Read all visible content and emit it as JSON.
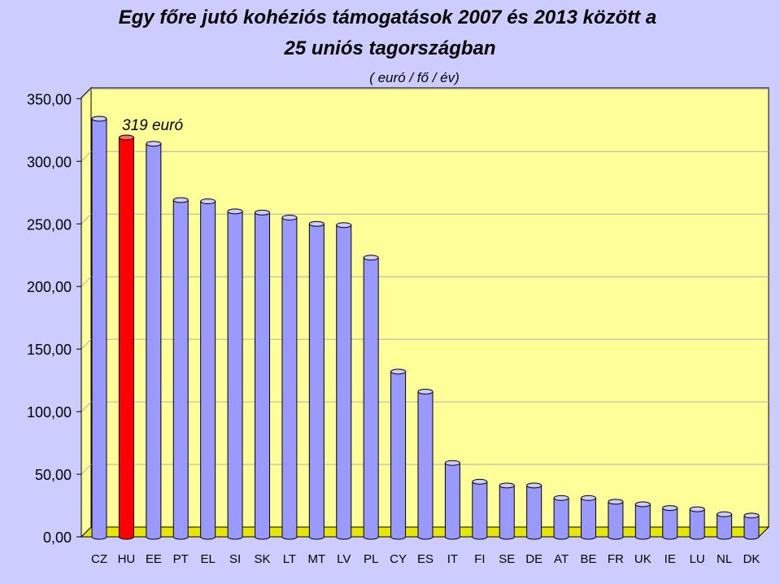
{
  "chart_data": {
    "type": "bar",
    "title": [
      "Egy főre jutó kohéziós támogatások 2007 és 2013 között a",
      "25 uniós tagországban"
    ],
    "subtitle": "( euró / fő / év)",
    "annotation": "319 euró",
    "categories": [
      "CZ",
      "HU",
      "EE",
      "PT",
      "EL",
      "SI",
      "SK",
      "LT",
      "MT",
      "LV",
      "PL",
      "CY",
      "ES",
      "IT",
      "FI",
      "SE",
      "DE",
      "AT",
      "BE",
      "FR",
      "UK",
      "IE",
      "LU",
      "NL",
      "DK"
    ],
    "values": [
      334,
      319,
      314,
      269,
      268,
      260,
      259,
      255,
      250,
      249,
      223,
      132,
      116,
      59,
      44,
      41,
      41,
      31,
      31,
      28,
      26,
      23,
      22,
      18,
      17
    ],
    "highlight": "HU",
    "ylim": [
      0,
      350
    ],
    "yticks": [
      "0,00",
      "50,00",
      "100,00",
      "150,00",
      "200,00",
      "250,00",
      "300,00",
      "350,00"
    ],
    "grid": true,
    "colors": {
      "background": "#ccccff",
      "plot_area": "#ffff99",
      "bar": "#9999ff",
      "bar_highlight": "#ff0000",
      "floor": "#e6e600"
    }
  }
}
